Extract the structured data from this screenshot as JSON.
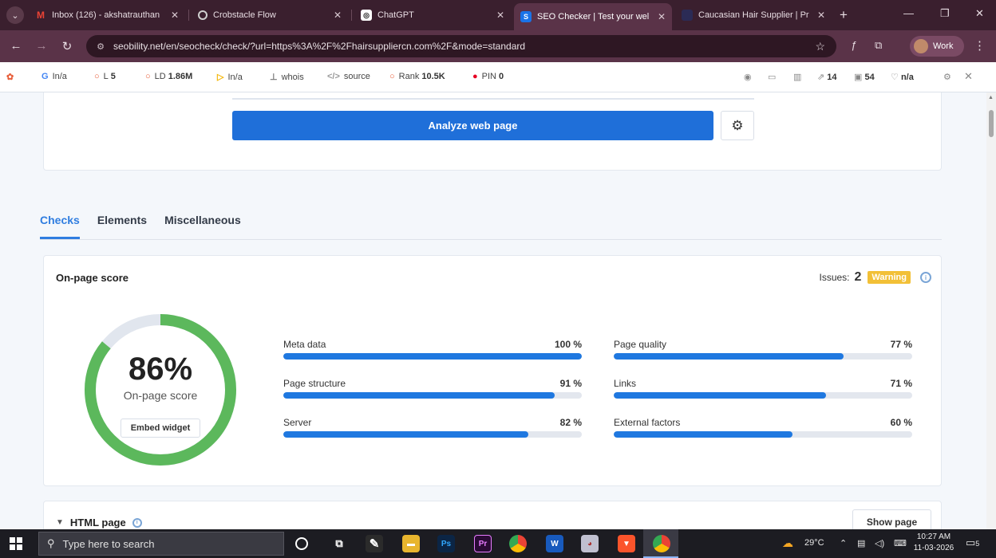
{
  "browser": {
    "tabs": [
      {
        "title": "Inbox (126) - akshatrauthan",
        "favicon": "gmail-icon",
        "color": "#ea4335",
        "active": false
      },
      {
        "title": "Crobstacle Flow",
        "favicon": "globe-icon",
        "color": "#cfcfcf",
        "active": false
      },
      {
        "title": "ChatGPT",
        "favicon": "chatgpt-icon",
        "color": "#ffffff",
        "active": false
      },
      {
        "title": "SEO Checker | Test your wel",
        "favicon": "seobility-icon",
        "color": "#1a73e8",
        "active": true
      },
      {
        "title": "Caucasian Hair Supplier | Pr",
        "favicon": "site-icon",
        "color": "#cfcfcf",
        "active": false
      }
    ],
    "url": "seobility.net/en/seocheck/check/?url=https%3A%2F%2Fhairsuppliercn.com%2F&mode=standard",
    "profile_label": "Work"
  },
  "seo_toolbar": {
    "items": [
      {
        "label": "I",
        "value": "n/a",
        "icon": "google-icon"
      },
      {
        "label": "L",
        "value": "5",
        "icon": "ring-icon"
      },
      {
        "label": "LD",
        "value": "1.86M",
        "icon": "ring-icon"
      },
      {
        "label": "I",
        "value": "n/a",
        "icon": "bing-icon"
      },
      {
        "label": "whois",
        "value": "",
        "icon": "person-icon"
      },
      {
        "label": "source",
        "value": "",
        "icon": "code-icon"
      },
      {
        "label": "Rank",
        "value": "10.5K",
        "icon": "ring-icon"
      },
      {
        "label": "PIN",
        "value": "0",
        "icon": "pinterest-icon"
      }
    ],
    "right_items": [
      {
        "value": "14",
        "icon": "external-link-icon"
      },
      {
        "value": "54",
        "icon": "image-icon"
      },
      {
        "value": "n/a",
        "icon": "heart-icon"
      }
    ]
  },
  "analyze": {
    "button_label": "Analyze web page"
  },
  "nav_tabs": [
    {
      "label": "Checks",
      "active": true
    },
    {
      "label": "Elements",
      "active": false
    },
    {
      "label": "Miscellaneous",
      "active": false
    }
  ],
  "score_card": {
    "title": "On-page score",
    "issues_label": "Issues:",
    "issues_count": "2",
    "badge": "Warning",
    "score_text": "86%",
    "score_value": 86,
    "score_label": "On-page score",
    "embed_label": "Embed widget",
    "metrics_left": [
      {
        "label": "Meta data",
        "value_text": "100 %",
        "value": 100
      },
      {
        "label": "Page structure",
        "value_text": "91 %",
        "value": 91
      },
      {
        "label": "Server",
        "value_text": "82 %",
        "value": 82
      }
    ],
    "metrics_right": [
      {
        "label": "Page quality",
        "value_text": "77 %",
        "value": 77
      },
      {
        "label": "Links",
        "value_text": "71 %",
        "value": 71
      },
      {
        "label": "External factors",
        "value_text": "60 %",
        "value": 60
      }
    ]
  },
  "html_card": {
    "title": "HTML page",
    "show_label": "Show page"
  },
  "taskbar": {
    "search_placeholder": "Type here to search",
    "weather": "29°C",
    "time": "10:27 AM",
    "date": "11-03-2026",
    "notification_count": "5"
  },
  "colors": {
    "accent": "#1f6fd9",
    "progress": "#1f78e0",
    "donut_green": "#5cb85c",
    "donut_track": "#e1e6ee",
    "warning": "#f2c037",
    "browser_frame": "#5a3348"
  }
}
